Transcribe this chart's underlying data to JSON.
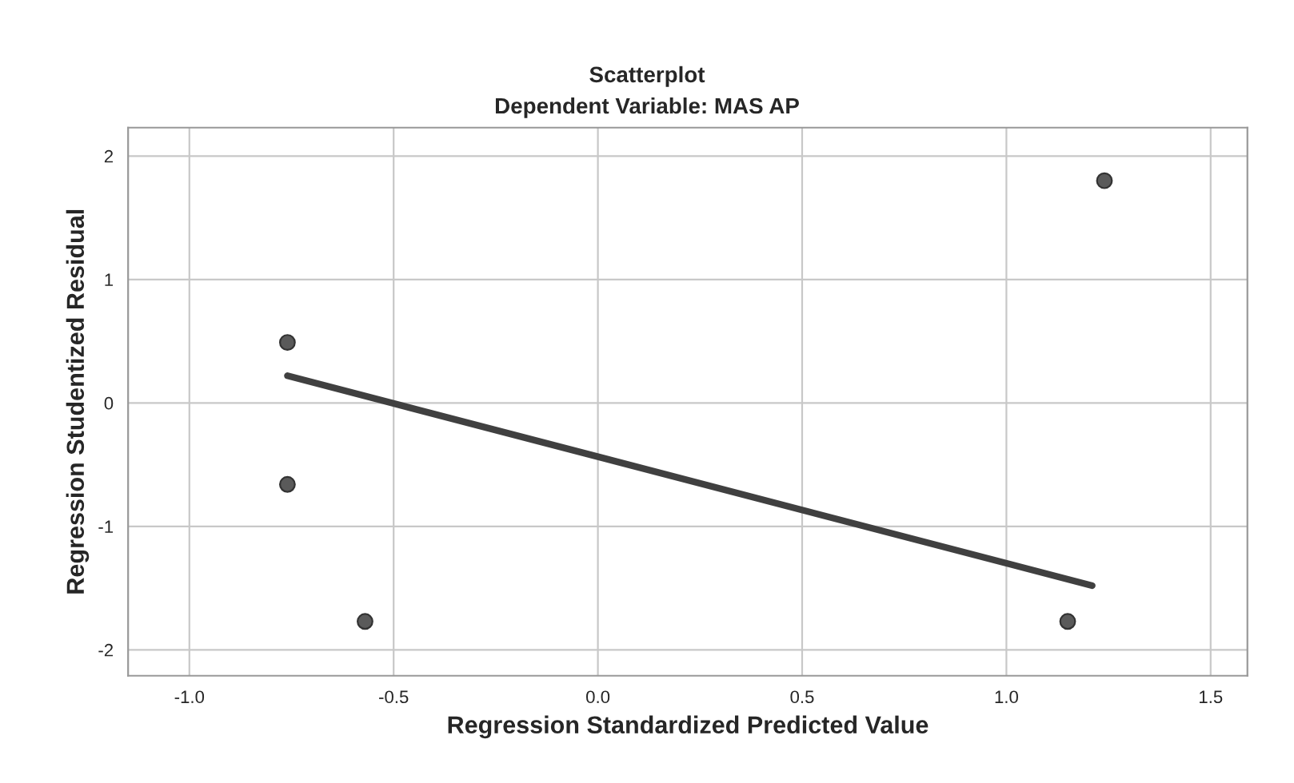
{
  "chart_data": {
    "type": "scatter",
    "title": "Scatterplot",
    "subtitle": "Dependent Variable: MAS AP",
    "xlabel": "Regression Standardized Predicted Value",
    "ylabel": "Regression Studentized Residual",
    "series": [
      {
        "marker": "circle",
        "color": "#5a5a5a",
        "x": [
          -0.76,
          -0.76,
          -0.57,
          1.15,
          1.24
        ],
        "values": [
          0.49,
          -0.66,
          -1.77,
          -1.77,
          1.8
        ]
      },
      {
        "type": "line",
        "marker": "none",
        "color": "#404040",
        "x": [
          -0.76,
          1.21
        ],
        "values": [
          0.22,
          -1.48
        ]
      }
    ],
    "xlim": [
      -1.15,
      1.59
    ],
    "ylim": [
      -2.21,
      2.23
    ],
    "xticks": [
      {
        "value": -1,
        "label": "-1.0"
      },
      {
        "value": -0.5,
        "label": "-0.5"
      },
      {
        "value": 0,
        "label": "0.0"
      },
      {
        "value": 0.5,
        "label": "0.5"
      },
      {
        "value": 1,
        "label": "1.0"
      },
      {
        "value": 1.5,
        "label": "1.5"
      }
    ],
    "yticks": [
      -2,
      -1,
      0,
      1,
      2
    ],
    "grid": true
  }
}
